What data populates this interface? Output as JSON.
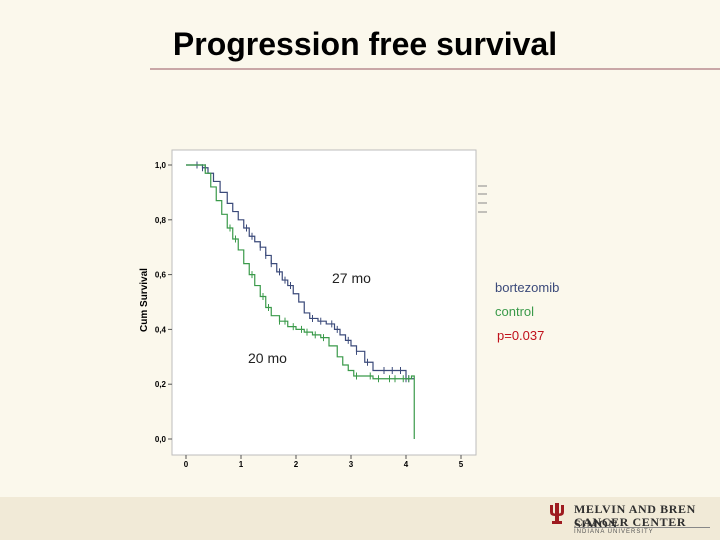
{
  "slide": {
    "title": "Progression free survival"
  },
  "annotations": {
    "bortezomib_median": "27 mo",
    "control_median": "20 mo",
    "legend_bortezomib": "bortezomib",
    "legend_control": "control",
    "p_value": "p=0.037"
  },
  "footer": {
    "logo_line1": "MELVIN AND BREN SIMON",
    "logo_line2": "CANCER CENTER",
    "logo_line3": "INDIANA UNIVERSITY",
    "logo_icon": "trident-icon"
  },
  "colors": {
    "bortezomib": "#3b4a7a",
    "control": "#3a9a4a",
    "p_value": "#c0101a",
    "logo": "#9e1b20"
  },
  "chart_data": {
    "type": "line",
    "title": "",
    "xlabel": "",
    "ylabel": "Cum Survival",
    "xlim": [
      0,
      5
    ],
    "ylim": [
      0,
      1
    ],
    "x_ticks": [
      "0",
      "1",
      "2",
      "3",
      "4",
      "5"
    ],
    "y_ticks": [
      "0,0",
      "0,2",
      "0,4",
      "0,6",
      "0,8",
      "1,0"
    ],
    "grid": false,
    "series": [
      {
        "name": "bortezomib",
        "step": true,
        "x": [
          0,
          0.3,
          0.4,
          0.5,
          0.62,
          0.75,
          0.85,
          0.95,
          1.05,
          1.15,
          1.25,
          1.35,
          1.45,
          1.55,
          1.65,
          1.75,
          1.85,
          1.95,
          2.05,
          2.15,
          2.25,
          2.4,
          2.55,
          2.7,
          2.8,
          2.9,
          3.0,
          3.1,
          3.25,
          3.4,
          3.55,
          3.9,
          4.0,
          4.15
        ],
        "y": [
          1.0,
          0.99,
          0.97,
          0.94,
          0.9,
          0.86,
          0.83,
          0.8,
          0.77,
          0.74,
          0.72,
          0.7,
          0.67,
          0.64,
          0.61,
          0.58,
          0.56,
          0.53,
          0.5,
          0.46,
          0.44,
          0.43,
          0.42,
          0.4,
          0.38,
          0.36,
          0.34,
          0.32,
          0.28,
          0.25,
          0.25,
          0.25,
          0.22,
          0.22
        ],
        "censor_x": [
          0.2,
          0.3,
          0.35,
          1.1,
          1.2,
          1.35,
          1.45,
          1.55,
          1.7,
          1.8,
          1.9,
          2.3,
          2.45,
          2.65,
          2.75,
          2.95,
          3.1,
          3.3,
          3.6,
          3.75,
          3.9,
          4.0,
          4.05
        ]
      },
      {
        "name": "control",
        "step": true,
        "x": [
          0,
          0.35,
          0.45,
          0.55,
          0.65,
          0.75,
          0.85,
          0.95,
          1.05,
          1.15,
          1.25,
          1.35,
          1.45,
          1.55,
          1.7,
          1.85,
          2.0,
          2.15,
          2.3,
          2.45,
          2.6,
          2.75,
          2.85,
          2.95,
          3.05,
          3.2,
          3.4,
          3.6,
          3.9,
          4.1,
          4.15
        ],
        "y": [
          1.0,
          0.97,
          0.92,
          0.87,
          0.82,
          0.77,
          0.73,
          0.69,
          0.64,
          0.6,
          0.56,
          0.52,
          0.48,
          0.45,
          0.43,
          0.41,
          0.4,
          0.39,
          0.38,
          0.37,
          0.34,
          0.3,
          0.27,
          0.25,
          0.23,
          0.23,
          0.22,
          0.22,
          0.22,
          0.23,
          0.0
        ],
        "censor_x": [
          0.8,
          0.9,
          1.2,
          1.4,
          1.5,
          1.7,
          1.8,
          1.95,
          2.1,
          2.2,
          2.35,
          2.5,
          3.1,
          3.35,
          3.5,
          3.7,
          3.8,
          3.95,
          4.05
        ]
      }
    ]
  }
}
